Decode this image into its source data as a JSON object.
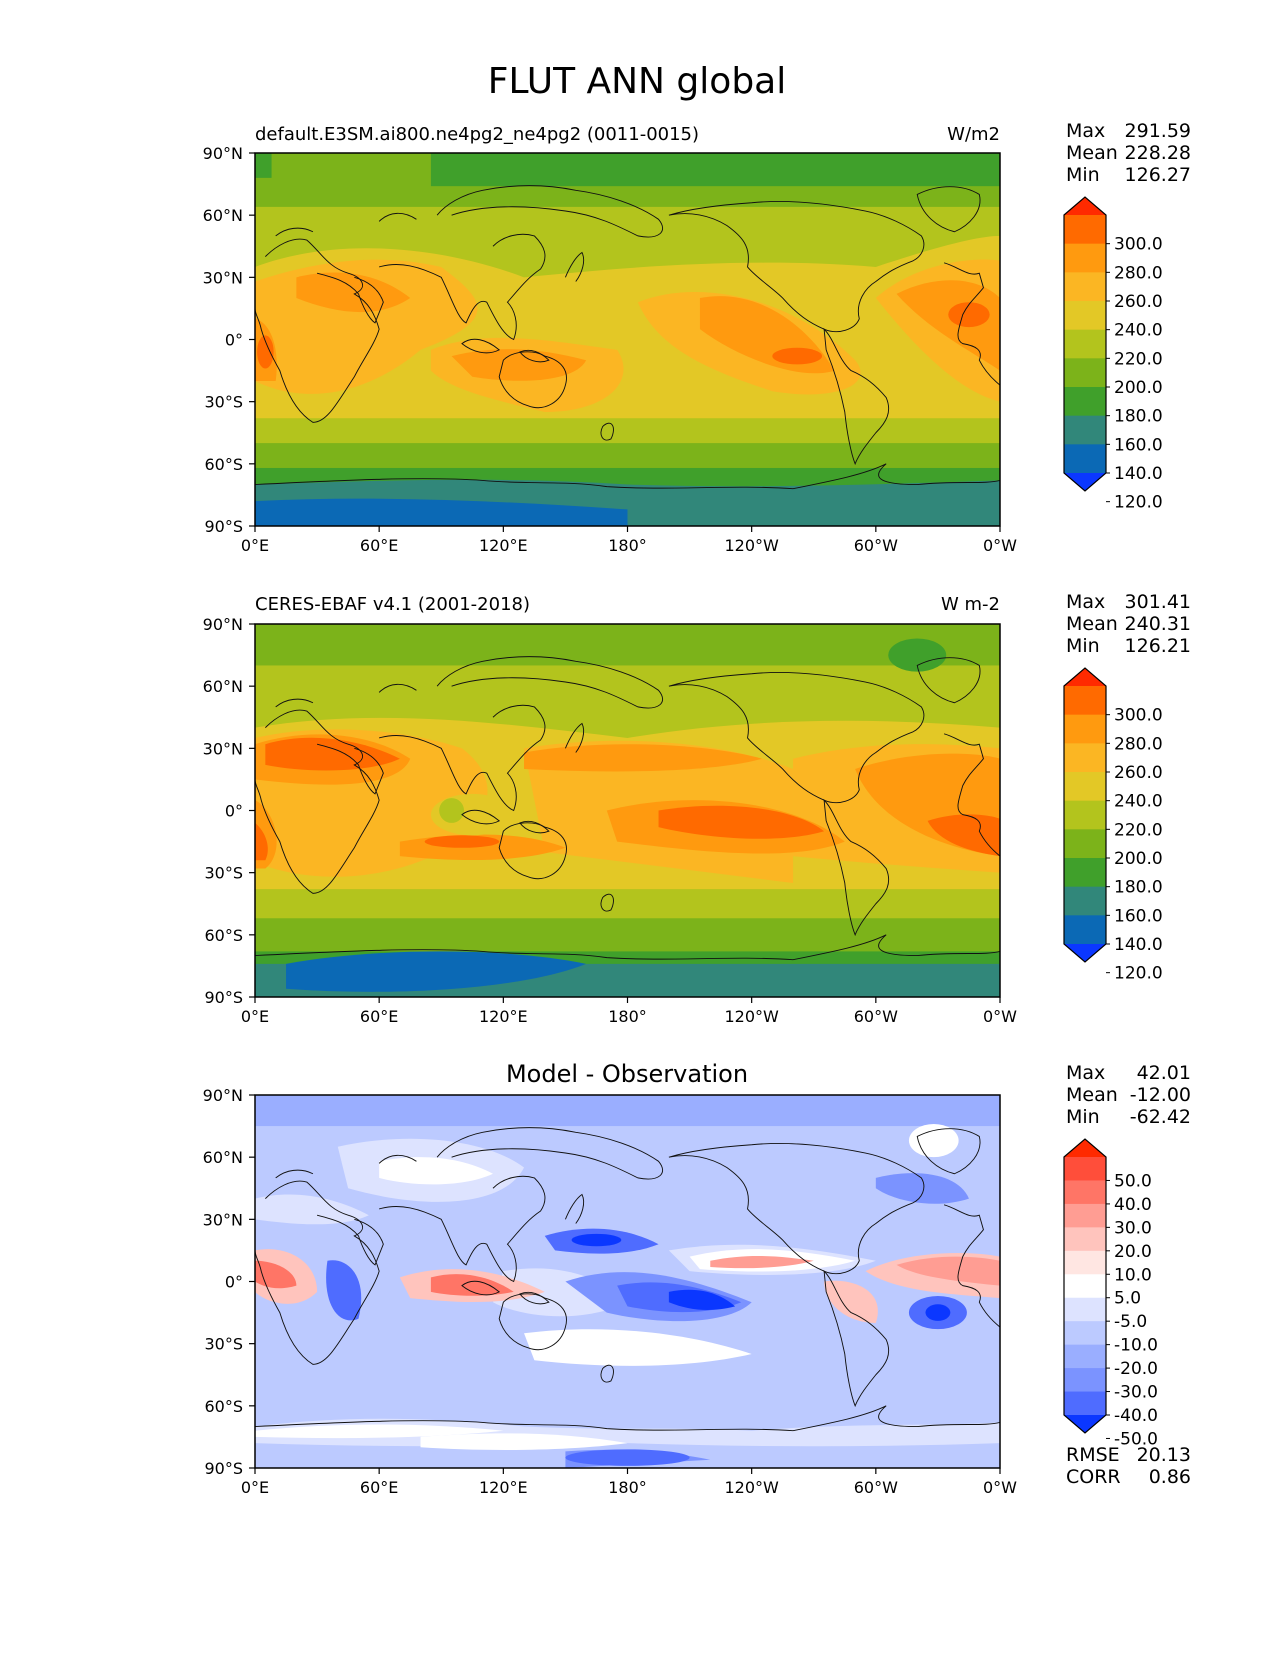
{
  "figure": {
    "title": "FLUT ANN global"
  },
  "x_ticks": [
    "0°E",
    "60°E",
    "120°E",
    "180°",
    "120°W",
    "60°W",
    "0°W"
  ],
  "y_ticks": [
    "90°N",
    "60°N",
    "30°N",
    "0°",
    "30°S",
    "60°S",
    "90°S"
  ],
  "chart_data": [
    {
      "type": "heatmap",
      "title": "",
      "left_label": "default.E3SM.ai800.ne4pg2_ne4pg2 (0011-0015)",
      "right_label": "W/m2",
      "xlim": [
        0,
        360
      ],
      "ylim": [
        -90,
        90
      ],
      "stats": [
        {
          "label": "Max",
          "value": "291.59"
        },
        {
          "label": "Mean",
          "value": "228.28"
        },
        {
          "label": "Min",
          "value": "126.27"
        }
      ],
      "colorbar": {
        "levels": [
          "300.0",
          "280.0",
          "260.0",
          "240.0",
          "220.0",
          "200.0",
          "180.0",
          "160.0",
          "140.0",
          "120.0"
        ],
        "colors": [
          "#ff2a00",
          "#ff6a00",
          "#ff9a0f",
          "#fbb623",
          "#e3c826",
          "#b3c41d",
          "#7cb31a",
          "#40a02b",
          "#31877a",
          "#0b69b5",
          "#0b37ff"
        ]
      },
      "extra_stats": []
    },
    {
      "type": "heatmap",
      "title": "",
      "left_label": "CERES-EBAF v4.1 (2001-2018)",
      "right_label": "W m-2",
      "xlim": [
        0,
        360
      ],
      "ylim": [
        -90,
        90
      ],
      "stats": [
        {
          "label": "Max",
          "value": "301.41"
        },
        {
          "label": "Mean",
          "value": "240.31"
        },
        {
          "label": "Min",
          "value": "126.21"
        }
      ],
      "colorbar": {
        "levels": [
          "300.0",
          "280.0",
          "260.0",
          "240.0",
          "220.0",
          "200.0",
          "180.0",
          "160.0",
          "140.0",
          "120.0"
        ],
        "colors": [
          "#ff2a00",
          "#ff6a00",
          "#ff9a0f",
          "#fbb623",
          "#e3c826",
          "#b3c41d",
          "#7cb31a",
          "#40a02b",
          "#31877a",
          "#0b69b5",
          "#0b37ff"
        ]
      },
      "extra_stats": []
    },
    {
      "type": "heatmap",
      "title": "Model - Observation",
      "left_label": "",
      "right_label": "",
      "xlim": [
        0,
        360
      ],
      "ylim": [
        -90,
        90
      ],
      "stats": [
        {
          "label": "Max",
          "value": "42.01"
        },
        {
          "label": "Mean",
          "value": "-12.00"
        },
        {
          "label": "Min",
          "value": "-62.42"
        }
      ],
      "colorbar": {
        "levels": [
          "50.0",
          "40.0",
          "30.0",
          "20.0",
          "10.0",
          "5.0",
          "-5.0",
          "-10.0",
          "-20.0",
          "-30.0",
          "-40.0",
          "-50.0"
        ],
        "colors": [
          "#ff2a00",
          "#ff4e3a",
          "#ff7566",
          "#ff9d93",
          "#ffc4bd",
          "#ffe6e2",
          "#ffffff",
          "#dde3ff",
          "#bccaff",
          "#9aaeff",
          "#7b93ff",
          "#4f6cff",
          "#0b37ff"
        ]
      },
      "extra_stats": [
        {
          "label": "RMSE",
          "value": "20.13"
        },
        {
          "label": "CORR",
          "value": "0.86"
        }
      ]
    }
  ]
}
